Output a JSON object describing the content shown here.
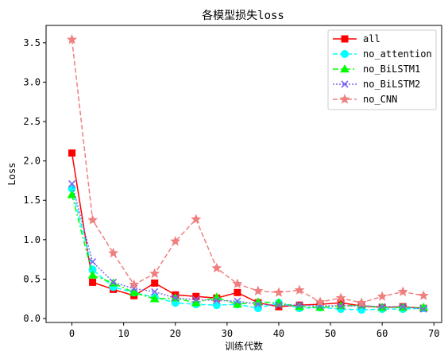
{
  "chart_data": {
    "type": "line",
    "title": "各模型损失loss",
    "xlabel": "训练代数",
    "ylabel": "Loss",
    "xlim": [
      -5,
      71.5
    ],
    "ylim": [
      -0.05,
      3.72
    ],
    "xticks": [
      0,
      10,
      20,
      30,
      40,
      50,
      60,
      70
    ],
    "yticks": [
      0.0,
      0.5,
      1.0,
      1.5,
      2.0,
      2.5,
      3.0,
      3.5
    ],
    "ytick_labels": [
      "0.0",
      "0.5",
      "1.0",
      "1.5",
      "2.0",
      "2.5",
      "3.0",
      "3.5"
    ],
    "grid": false,
    "legend_position": "top-right",
    "x": [
      0,
      4,
      8,
      12,
      16,
      20,
      24,
      28,
      32,
      36,
      40,
      44,
      48,
      52,
      56,
      60,
      64,
      68
    ],
    "series": [
      {
        "name": "all",
        "color": "#ff0000",
        "dash": "solid",
        "marker": "square",
        "values": [
          2.1,
          0.46,
          0.37,
          0.29,
          0.45,
          0.3,
          0.28,
          0.26,
          0.33,
          0.2,
          0.15,
          0.17,
          0.18,
          0.2,
          0.16,
          0.14,
          0.15,
          0.13
        ]
      },
      {
        "name": "no_attention",
        "color": "#00ffff",
        "dash": "dashed",
        "marker": "circle",
        "values": [
          1.65,
          0.62,
          0.4,
          0.33,
          0.27,
          0.2,
          0.18,
          0.17,
          0.18,
          0.13,
          0.2,
          0.13,
          0.14,
          0.12,
          0.11,
          0.12,
          0.12,
          0.13
        ]
      },
      {
        "name": "no_BiLSTM1",
        "color": "#00ff00",
        "dash": "dashdot",
        "marker": "triangle",
        "values": [
          1.57,
          0.55,
          0.45,
          0.33,
          0.25,
          0.26,
          0.2,
          0.27,
          0.18,
          0.21,
          0.2,
          0.15,
          0.14,
          0.16,
          0.17,
          0.14,
          0.14,
          0.14
        ]
      },
      {
        "name": "no_BiLSTM2",
        "color": "#7b68ee",
        "dash": "dotted",
        "marker": "x",
        "values": [
          1.71,
          0.72,
          0.46,
          0.38,
          0.34,
          0.26,
          0.24,
          0.23,
          0.22,
          0.18,
          0.17,
          0.17,
          0.16,
          0.16,
          0.16,
          0.15,
          0.15,
          0.12
        ]
      },
      {
        "name": "no_CNN",
        "color": "#f08080",
        "dash": "dashed",
        "marker": "star",
        "values": [
          3.54,
          1.25,
          0.83,
          0.43,
          0.57,
          0.98,
          1.26,
          0.64,
          0.44,
          0.35,
          0.33,
          0.36,
          0.21,
          0.26,
          0.2,
          0.28,
          0.34,
          0.29
        ]
      }
    ]
  }
}
